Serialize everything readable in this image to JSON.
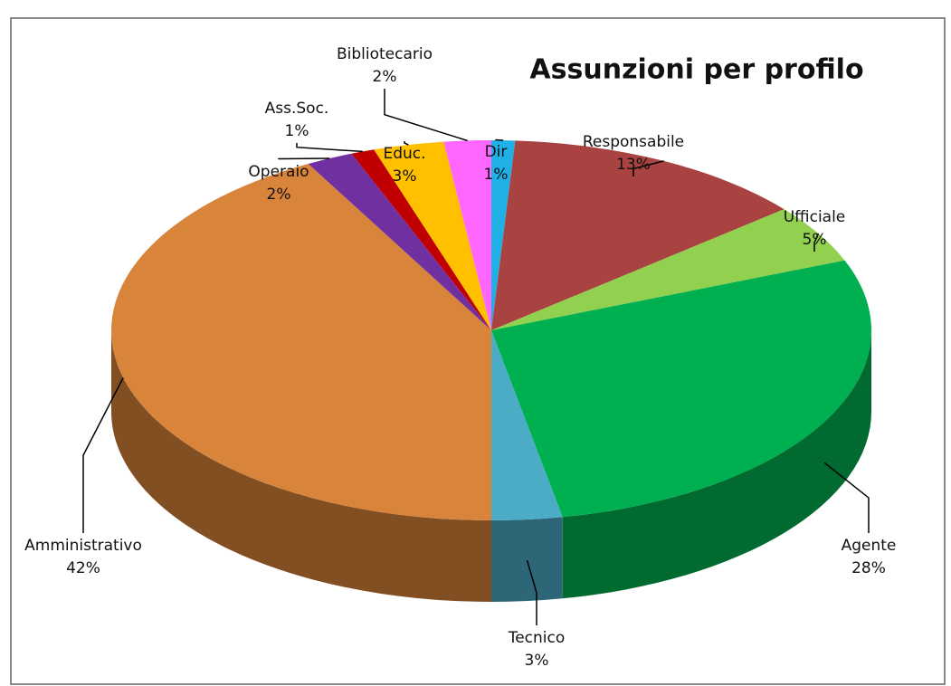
{
  "chart_data": {
    "type": "pie3d",
    "title": "Assunzioni per profilo",
    "categories": [
      "Dir",
      "Responsabile",
      "Ufficiale",
      "Agente",
      "Tecnico",
      "Amministrativo",
      "Operaio",
      "Ass.Soc.",
      "Educ.",
      "Bibliotecario"
    ],
    "values": [
      1,
      13,
      5,
      28,
      3,
      42,
      2,
      1,
      3,
      2
    ],
    "value_labels": [
      "1%",
      "13%",
      "5%",
      "28%",
      "3%",
      "42%",
      "2%",
      "1%",
      "3%",
      "2%"
    ],
    "colors": [
      "#1fb1e6",
      "#a84341",
      "#92d050",
      "#00b050",
      "#4bacc6",
      "#d9843b",
      "#7030a0",
      "#c00000",
      "#ffc000",
      "#ff66ff"
    ]
  }
}
